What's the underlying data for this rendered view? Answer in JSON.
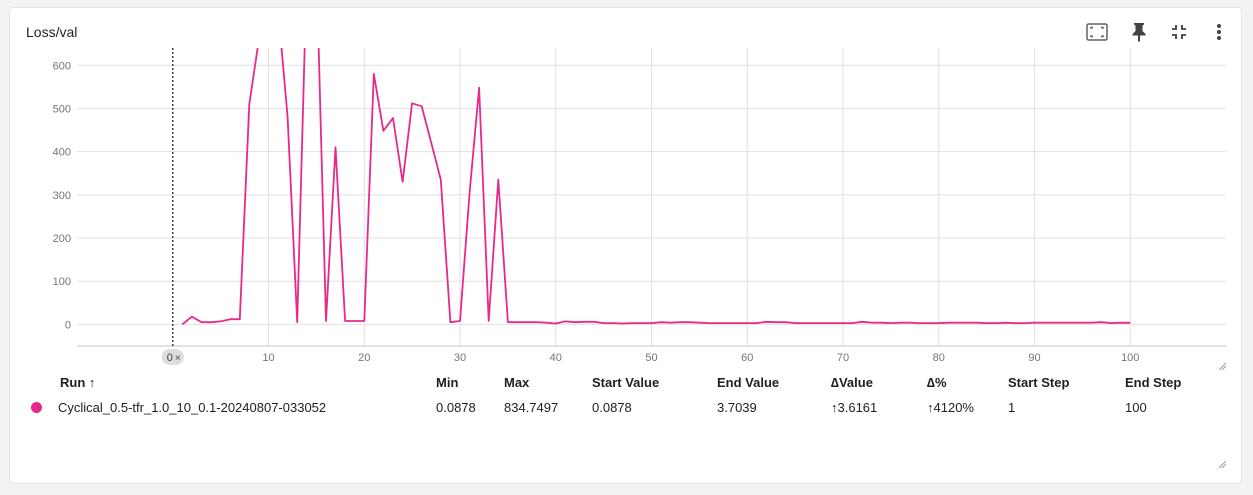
{
  "card": {
    "title": "Loss/val"
  },
  "toolbar": {
    "icons": [
      "fit-domain-icon",
      "pin-icon",
      "collapse-icon",
      "more-vert-icon"
    ]
  },
  "colors": {
    "series": "#e7298a",
    "grid": "#e0e0e0",
    "axis_text": "#757575"
  },
  "chart_data": {
    "type": "line",
    "title": "Loss/val",
    "xlabel": "",
    "ylabel": "",
    "x_ticks": [
      10,
      20,
      30,
      40,
      50,
      60,
      70,
      80,
      90,
      100
    ],
    "y_ticks": [
      0,
      100,
      200,
      300,
      400,
      500,
      600
    ],
    "xlim": [
      -10,
      110
    ],
    "ylim": [
      -50,
      640
    ],
    "grid": true,
    "cursor_marker": {
      "x": 0,
      "label": "0"
    },
    "series": [
      {
        "name": "Cyclical_0.5-tfr_1.0_10_0.1-20240807-033052",
        "x": [
          1,
          2,
          3,
          4,
          5,
          6,
          7,
          8,
          9,
          10,
          11,
          12,
          13,
          14,
          15,
          16,
          17,
          18,
          19,
          20,
          21,
          22,
          23,
          24,
          25,
          26,
          27,
          28,
          29,
          30,
          31,
          32,
          33,
          34,
          35,
          36,
          37,
          38,
          39,
          40,
          41,
          42,
          43,
          44,
          45,
          46,
          47,
          48,
          49,
          50,
          51,
          52,
          53,
          54,
          55,
          56,
          57,
          58,
          59,
          60,
          61,
          62,
          63,
          64,
          65,
          66,
          67,
          68,
          69,
          70,
          71,
          72,
          73,
          74,
          75,
          76,
          77,
          78,
          79,
          80,
          81,
          82,
          83,
          84,
          85,
          86,
          87,
          88,
          89,
          90,
          91,
          92,
          93,
          94,
          95,
          96,
          97,
          98,
          99,
          100
        ],
        "y": [
          0.0878,
          18,
          5,
          5,
          7,
          12,
          12,
          510,
          660,
          780,
          730,
          480,
          5,
          820,
          834.7497,
          8,
          410,
          8,
          8,
          8,
          580,
          448,
          478,
          330,
          512,
          505,
          420,
          335,
          5,
          8,
          305,
          548,
          8,
          335,
          5,
          5,
          5,
          5,
          4,
          2,
          7,
          5,
          6,
          6,
          3,
          3,
          2,
          3,
          3,
          3,
          5,
          4,
          5,
          5,
          4,
          3,
          3,
          3,
          3,
          3,
          3,
          6,
          5,
          5,
          3,
          3,
          3,
          3,
          3,
          3,
          3,
          6,
          4,
          4,
          3,
          4,
          4,
          3,
          3,
          3,
          4,
          4,
          4,
          4,
          3,
          3,
          4,
          3,
          3,
          4,
          4,
          4,
          4,
          4,
          4,
          4,
          5,
          3,
          4,
          3.7039
        ]
      }
    ]
  },
  "table": {
    "headers": {
      "run": "Run ↑",
      "min": "Min",
      "max": "Max",
      "start_value": "Start Value",
      "end_value": "End Value",
      "delta_value": "∆Value",
      "delta_pct": "∆%",
      "start_step": "Start Step",
      "end_step": "End Step"
    },
    "rows": [
      {
        "run": "Cyclical_0.5-tfr_1.0_10_0.1-20240807-033052",
        "min": "0.0878",
        "max": "834.7497",
        "start_value": "0.0878",
        "end_value": "3.7039",
        "delta_value": "↑3.6161",
        "delta_pct": "↑4120%",
        "start_step": "1",
        "end_step": "100"
      }
    ]
  }
}
